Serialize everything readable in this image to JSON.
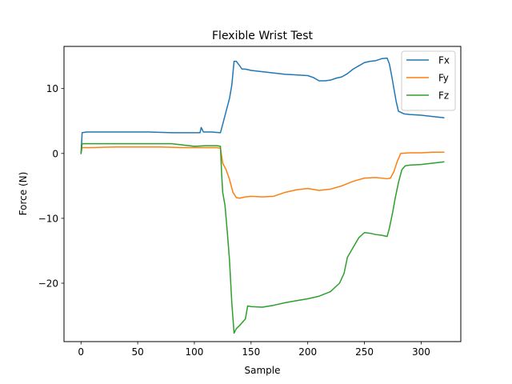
{
  "chart_data": {
    "type": "line",
    "title": "Flexible Wrist Test",
    "xlabel": "Sample",
    "ylabel": "Force (N)",
    "xlim": [
      -15,
      335
    ],
    "ylim": [
      -29,
      16.5
    ],
    "xticks": [
      0,
      50,
      100,
      150,
      200,
      250,
      300
    ],
    "xtick_labels": [
      "0",
      "50",
      "100",
      "150",
      "200",
      "250",
      "300"
    ],
    "yticks": [
      -20,
      -10,
      0,
      10
    ],
    "ytick_labels": [
      "−20",
      "−10",
      "0",
      "10"
    ],
    "grid": false,
    "legend_position": "top-right",
    "series": [
      {
        "name": "Fx",
        "color": "#1f77b4",
        "points": [
          [
            0,
            0
          ],
          [
            1,
            3.2
          ],
          [
            5,
            3.3
          ],
          [
            20,
            3.3
          ],
          [
            40,
            3.3
          ],
          [
            60,
            3.3
          ],
          [
            80,
            3.2
          ],
          [
            100,
            3.2
          ],
          [
            105,
            3.2
          ],
          [
            106,
            4.0
          ],
          [
            108,
            3.3
          ],
          [
            115,
            3.3
          ],
          [
            123,
            3.2
          ],
          [
            125,
            4.5
          ],
          [
            128,
            6.5
          ],
          [
            131,
            8.5
          ],
          [
            133,
            10.5
          ],
          [
            135,
            14.2
          ],
          [
            137,
            14.2
          ],
          [
            140,
            13.5
          ],
          [
            142,
            13.0
          ],
          [
            145,
            13.0
          ],
          [
            150,
            12.8
          ],
          [
            160,
            12.6
          ],
          [
            170,
            12.4
          ],
          [
            180,
            12.2
          ],
          [
            190,
            12.1
          ],
          [
            200,
            12.0
          ],
          [
            205,
            11.7
          ],
          [
            210,
            11.2
          ],
          [
            215,
            11.2
          ],
          [
            220,
            11.3
          ],
          [
            225,
            11.6
          ],
          [
            230,
            11.8
          ],
          [
            235,
            12.3
          ],
          [
            240,
            13.0
          ],
          [
            245,
            13.5
          ],
          [
            250,
            14.0
          ],
          [
            255,
            14.2
          ],
          [
            260,
            14.3
          ],
          [
            265,
            14.6
          ],
          [
            270,
            14.7
          ],
          [
            272,
            13.8
          ],
          [
            274,
            12.0
          ],
          [
            276,
            10.0
          ],
          [
            278,
            8.0
          ],
          [
            280,
            6.5
          ],
          [
            285,
            6.1
          ],
          [
            290,
            6.0
          ],
          [
            300,
            5.9
          ],
          [
            310,
            5.7
          ],
          [
            320,
            5.5
          ]
        ]
      },
      {
        "name": "Fy",
        "color": "#ff7f0e",
        "points": [
          [
            0,
            0
          ],
          [
            1,
            0.9
          ],
          [
            10,
            0.9
          ],
          [
            30,
            1.0
          ],
          [
            50,
            1.0
          ],
          [
            70,
            1.0
          ],
          [
            90,
            0.9
          ],
          [
            110,
            0.9
          ],
          [
            120,
            0.9
          ],
          [
            123,
            0.8
          ],
          [
            125,
            -1.5
          ],
          [
            128,
            -2.5
          ],
          [
            131,
            -4.0
          ],
          [
            134,
            -6.0
          ],
          [
            137,
            -6.8
          ],
          [
            140,
            -6.9
          ],
          [
            145,
            -6.7
          ],
          [
            150,
            -6.6
          ],
          [
            160,
            -6.7
          ],
          [
            170,
            -6.6
          ],
          [
            180,
            -6.0
          ],
          [
            190,
            -5.6
          ],
          [
            200,
            -5.4
          ],
          [
            210,
            -5.7
          ],
          [
            220,
            -5.5
          ],
          [
            230,
            -5.0
          ],
          [
            240,
            -4.3
          ],
          [
            250,
            -3.8
          ],
          [
            260,
            -3.7
          ],
          [
            270,
            -3.9
          ],
          [
            273,
            -3.8
          ],
          [
            276,
            -2.8
          ],
          [
            279,
            -1.2
          ],
          [
            282,
            0.0
          ],
          [
            290,
            0.1
          ],
          [
            300,
            0.1
          ],
          [
            310,
            0.2
          ],
          [
            320,
            0.2
          ]
        ]
      },
      {
        "name": "Fz",
        "color": "#2ca02c",
        "points": [
          [
            0,
            0
          ],
          [
            1,
            1.5
          ],
          [
            10,
            1.5
          ],
          [
            30,
            1.5
          ],
          [
            50,
            1.5
          ],
          [
            70,
            1.5
          ],
          [
            80,
            1.5
          ],
          [
            90,
            1.3
          ],
          [
            100,
            1.1
          ],
          [
            110,
            1.2
          ],
          [
            120,
            1.2
          ],
          [
            123,
            1.1
          ],
          [
            124,
            -3.0
          ],
          [
            125,
            -6.0
          ],
          [
            127,
            -8.0
          ],
          [
            129,
            -12.0
          ],
          [
            131,
            -16.5
          ],
          [
            133,
            -23.0
          ],
          [
            135,
            -27.7
          ],
          [
            137,
            -27.0
          ],
          [
            140,
            -26.5
          ],
          [
            145,
            -25.5
          ],
          [
            147,
            -23.5
          ],
          [
            150,
            -23.6
          ],
          [
            160,
            -23.7
          ],
          [
            170,
            -23.4
          ],
          [
            180,
            -23.0
          ],
          [
            190,
            -22.7
          ],
          [
            200,
            -22.4
          ],
          [
            210,
            -22.0
          ],
          [
            220,
            -21.3
          ],
          [
            228,
            -20.0
          ],
          [
            232,
            -18.5
          ],
          [
            235,
            -16.0
          ],
          [
            240,
            -14.5
          ],
          [
            245,
            -13.0
          ],
          [
            250,
            -12.2
          ],
          [
            255,
            -12.3
          ],
          [
            260,
            -12.5
          ],
          [
            265,
            -12.6
          ],
          [
            270,
            -12.8
          ],
          [
            272,
            -11.5
          ],
          [
            275,
            -9.0
          ],
          [
            277,
            -7.0
          ],
          [
            280,
            -4.5
          ],
          [
            283,
            -2.5
          ],
          [
            286,
            -1.9
          ],
          [
            290,
            -1.8
          ],
          [
            300,
            -1.7
          ],
          [
            310,
            -1.5
          ],
          [
            320,
            -1.3
          ]
        ]
      }
    ]
  }
}
